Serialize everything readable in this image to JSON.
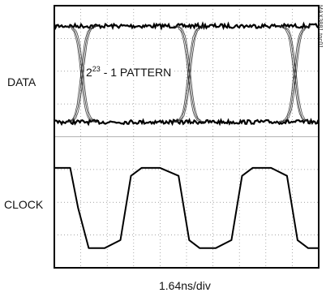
{
  "labels": {
    "data": "DATA",
    "clock": "CLOCK",
    "xscale": "1.64ns/div",
    "pattern_base": "2",
    "pattern_exp": "23",
    "pattern_rest": " - 1 PATTERN",
    "figure_id": "MAX3881 toc01"
  },
  "chart_data": {
    "type": "line",
    "title": "",
    "xlabel": "1.64ns/div",
    "grid": true,
    "divisions": {
      "x": 10,
      "y": 8
    },
    "series": [
      {
        "name": "DATA",
        "kind": "eye-diagram",
        "annotation": "2^23 - 1 PATTERN",
        "levels": [
          "high",
          "low"
        ],
        "crossings_div": [
          1.05,
          5.1,
          9.1
        ]
      },
      {
        "name": "CLOCK",
        "kind": "square-wave",
        "x_div": [
          0,
          0.6,
          0.9,
          1.3,
          1.9,
          2.5,
          2.9,
          3.3,
          4.0,
          4.7,
          5.1,
          5.5,
          6.1,
          6.7,
          7.1,
          7.5,
          8.2,
          8.8,
          9.2,
          9.6,
          10
        ],
        "y_level": [
          1,
          1,
          0.5,
          0,
          0,
          0.1,
          0.9,
          1,
          1,
          0.9,
          0.1,
          0,
          0,
          0.1,
          0.9,
          1,
          1,
          0.9,
          0.1,
          0,
          0
        ]
      }
    ]
  }
}
